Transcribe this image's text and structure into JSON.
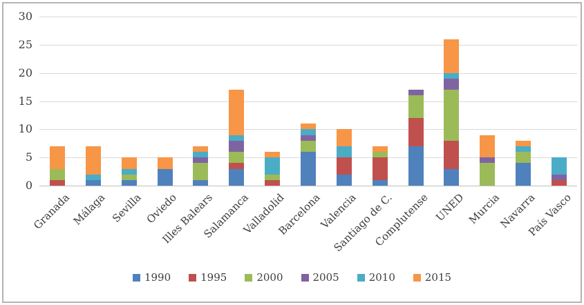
{
  "chart_data": {
    "type": "bar",
    "stacked": true,
    "categories": [
      "Granada",
      "Málaga",
      "Sevilla",
      "Oviedo",
      "Illes Balears",
      "Salamanca",
      "Valladolid",
      "Barcelona",
      "Valencia",
      "Santiago de C.",
      "Complutense",
      "UNED",
      "Murcia",
      "Navarra",
      "País Vasco"
    ],
    "series": [
      {
        "name": "1990",
        "color": "#4F81BD",
        "values": [
          0,
          1,
          1,
          3,
          1,
          3,
          0,
          6,
          2,
          1,
          7,
          3,
          0,
          4,
          0
        ]
      },
      {
        "name": "1995",
        "color": "#C0504D",
        "values": [
          1,
          0,
          0,
          0,
          0,
          1,
          1,
          0,
          3,
          4,
          5,
          5,
          0,
          0,
          1
        ]
      },
      {
        "name": "2000",
        "color": "#9BBB59",
        "values": [
          2,
          0,
          1,
          0,
          3,
          2,
          1,
          2,
          0,
          1,
          4,
          9,
          4,
          2,
          0
        ]
      },
      {
        "name": "2005",
        "color": "#8064A2",
        "values": [
          0,
          0,
          0,
          0,
          1,
          2,
          0,
          1,
          0,
          0,
          1,
          2,
          1,
          0,
          1
        ]
      },
      {
        "name": "2010",
        "color": "#4BACC6",
        "values": [
          0,
          1,
          1,
          0,
          1,
          1,
          3,
          1,
          2,
          0,
          0,
          1,
          0,
          1,
          3
        ]
      },
      {
        "name": "2015",
        "color": "#F79646",
        "values": [
          4,
          5,
          2,
          2,
          1,
          8,
          1,
          1,
          3,
          1,
          0,
          6,
          4,
          1,
          0
        ]
      }
    ],
    "totals": [
      7,
      7,
      5,
      5,
      7,
      17,
      6,
      11,
      10,
      7,
      17,
      26,
      9,
      8,
      5
    ],
    "title": "",
    "xlabel": "",
    "ylabel": "",
    "ylim": [
      0,
      30
    ],
    "yticks": [
      0,
      5,
      10,
      15,
      20,
      25,
      30
    ],
    "grid": true,
    "legend_position": "bottom",
    "legend_labels": [
      "1990",
      "1995",
      "2000",
      "2005",
      "2010",
      "2015"
    ],
    "colors": {
      "gridline": "#d9d9d9",
      "axis_line": "#bfbfbf",
      "text": "#3d3d3d",
      "frame_border": "#b3b3b3",
      "background": "#ffffff"
    }
  }
}
